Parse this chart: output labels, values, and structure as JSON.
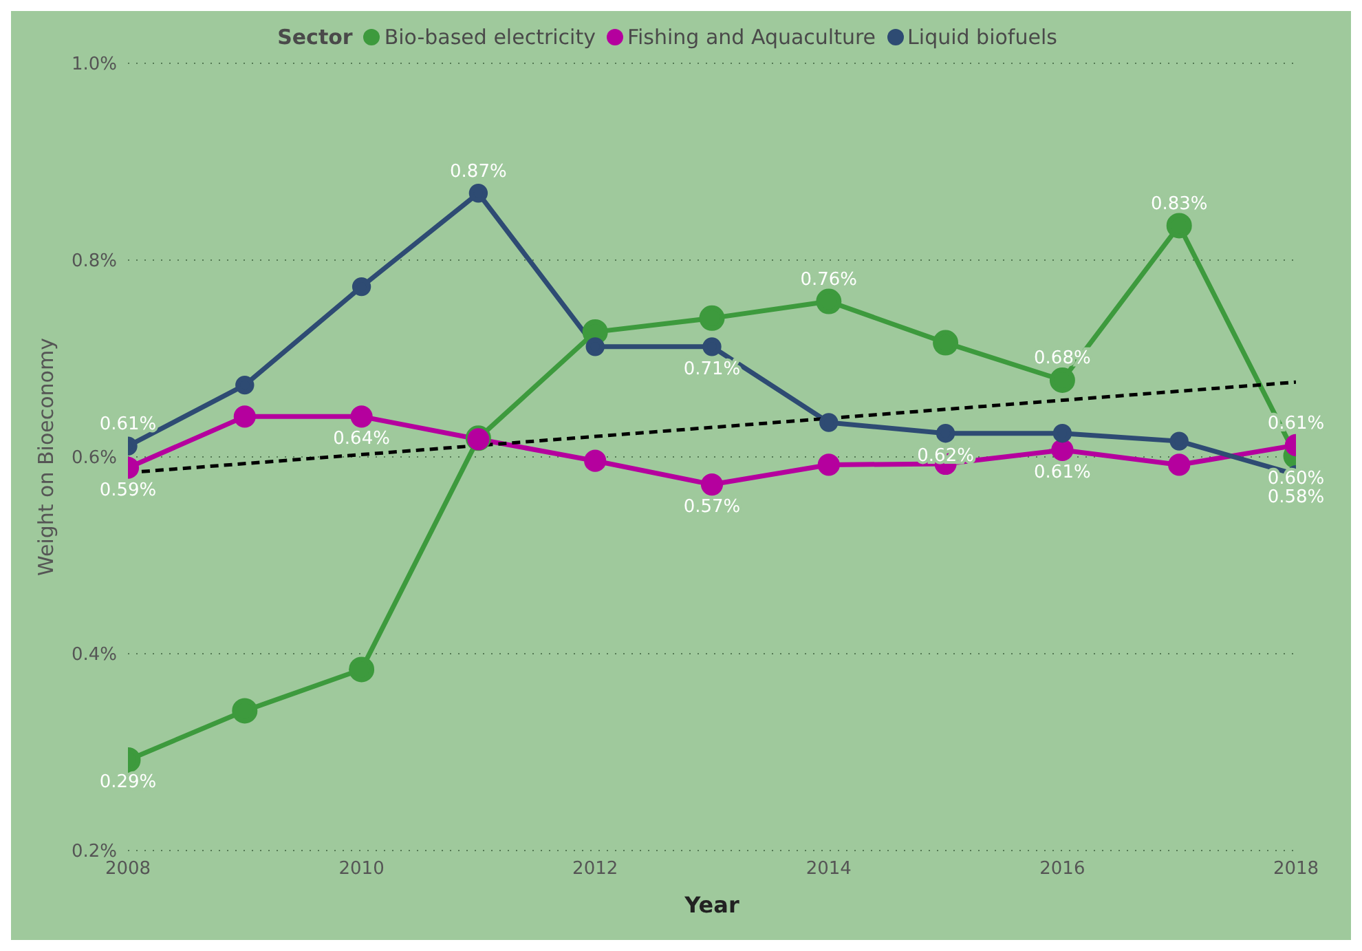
{
  "chart_data": {
    "type": "line",
    "xlabel": "Year",
    "ylabel": "Weight on Bioeconomy",
    "legend_title": "Sector",
    "legend": "top",
    "grid": "y",
    "marker": "circle",
    "line_style": "solid",
    "x": [
      2008,
      2009,
      2010,
      2011,
      2012,
      2013,
      2014,
      2015,
      2016,
      2017,
      2018
    ],
    "xlim": [
      2008,
      2018
    ],
    "xticks": [
      2008,
      2010,
      2012,
      2014,
      2016,
      2018
    ],
    "ylim": [
      0.2,
      1.0
    ],
    "yticks": [
      {
        "value": 0.2,
        "label": "0.2%"
      },
      {
        "value": 0.4,
        "label": "0.4%"
      },
      {
        "value": 0.6,
        "label": "0.6%"
      },
      {
        "value": 0.8,
        "label": "0.8%"
      },
      {
        "value": 1.0,
        "label": "1.0%"
      }
    ],
    "series": [
      {
        "name": "Bio-based electricity",
        "color": "#3d9a3d",
        "values": [
          0.292,
          0.342,
          0.384,
          0.619,
          0.727,
          0.741,
          0.758,
          0.716,
          0.678,
          0.835,
          0.601
        ],
        "value_labels": [
          "0.29%",
          null,
          null,
          null,
          null,
          null,
          "0.76%",
          null,
          "0.68%",
          "0.83%",
          "0.60%"
        ]
      },
      {
        "name": "Fishing and Aquaculture",
        "color": "#b5009e",
        "values": [
          0.589,
          0.641,
          0.641,
          0.618,
          0.596,
          0.572,
          0.592,
          0.593,
          0.607,
          0.592,
          0.612
        ],
        "value_labels": [
          "0.59%",
          null,
          "0.64%",
          null,
          null,
          "0.57%",
          null,
          null,
          "0.61%",
          null,
          "0.61%"
        ]
      },
      {
        "name": "Liquid biofuels",
        "color": "#2e4b73",
        "values": [
          0.611,
          0.673,
          0.773,
          0.868,
          0.712,
          0.712,
          0.635,
          0.624,
          0.624,
          0.616,
          0.582
        ],
        "value_labels": [
          "0.61%",
          null,
          null,
          "0.87%",
          null,
          "0.71%",
          null,
          "0.62%",
          null,
          null,
          "0.58%"
        ]
      },
      {
        "type": "line",
        "color": "#000000",
        "line_style": "dashed",
        "marker": "none",
        "x": [
          2008,
          2018
        ],
        "values": [
          0.584,
          0.676
        ]
      }
    ]
  }
}
